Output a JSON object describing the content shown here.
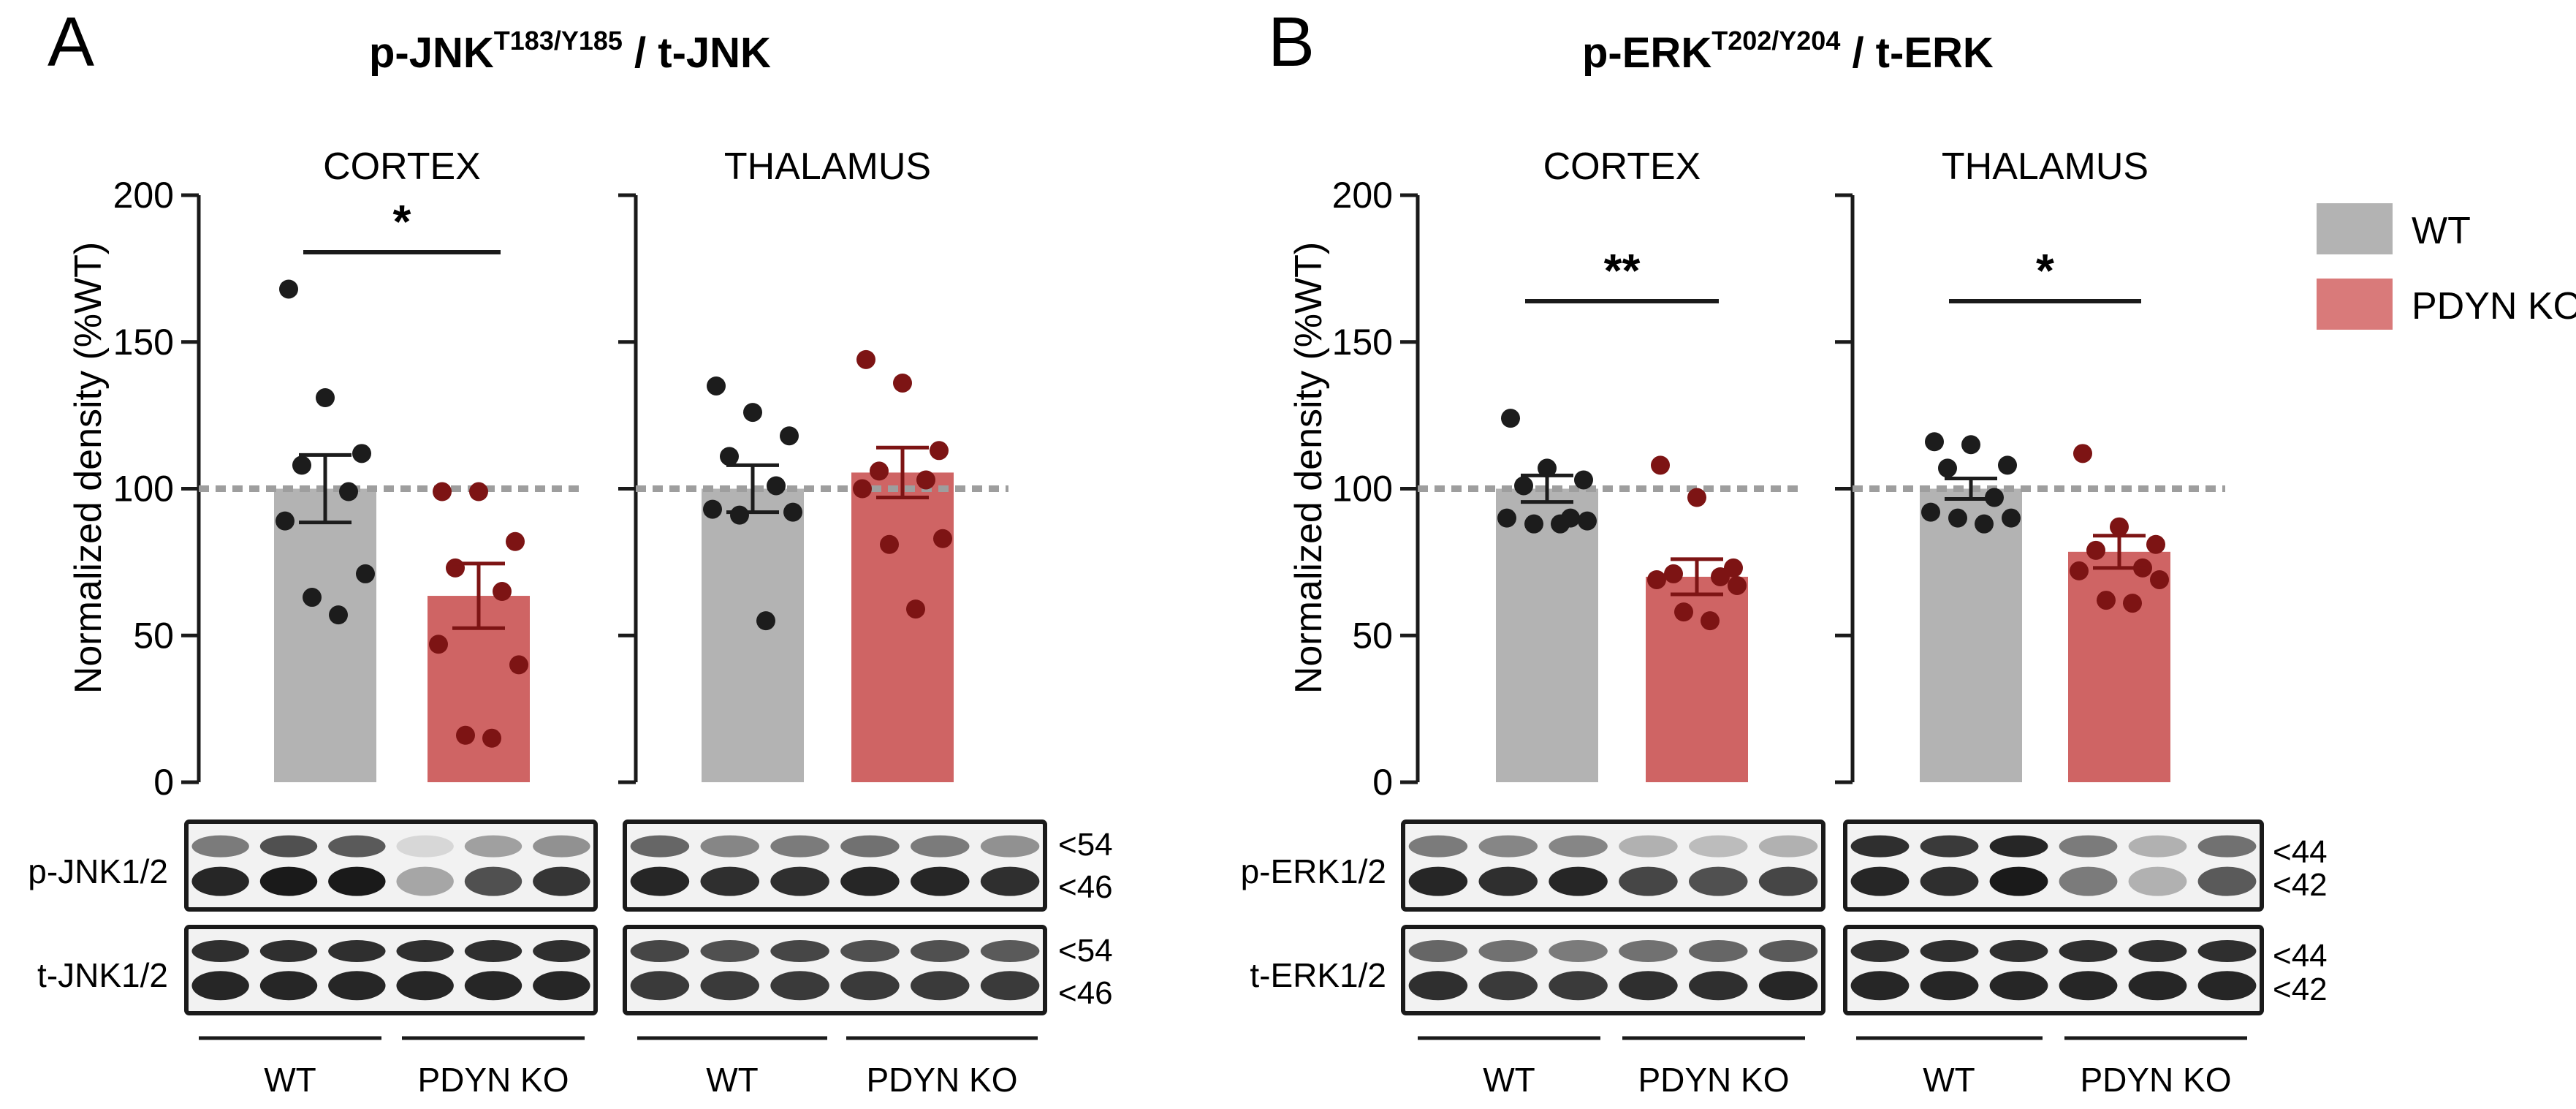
{
  "colors": {
    "wt_bar": "#b3b3b3",
    "ko_bar": "#cf6464",
    "wt_dot": "#1c1c1c",
    "ko_dot": "#7d1414",
    "axis": "#1a1a1a",
    "reference_line": "#9e9e9e",
    "blot_bg": "#f2f2f2",
    "band": "#1a1a1a"
  },
  "legend": [
    {
      "label": "WT",
      "color": "#b3b3b3"
    },
    {
      "label": "PDYN KO",
      "color": "#d97a7a"
    }
  ],
  "panels": [
    {
      "letter": "A",
      "title_main": "p-JNK",
      "title_sup": "T183/Y185",
      "title_rest": " / t-JNK",
      "ylabel": "Normalized density (%WT)",
      "blot_rows": [
        "p-JNK1/2",
        "t-JNK1/2"
      ],
      "mw_markers": [
        [
          "<54",
          "<46"
        ],
        [
          "<54",
          "<46"
        ]
      ]
    },
    {
      "letter": "B",
      "title_main": "p-ERK",
      "title_sup": "T202/Y204",
      "title_rest": " / t-ERK",
      "ylabel": "Normalized density (%WT)",
      "blot_rows": [
        "p-ERK1/2",
        "t-ERK1/2"
      ],
      "mw_markers": [
        [
          "<44",
          "<42"
        ],
        [
          "<44",
          "<42"
        ]
      ]
    }
  ],
  "group_labels": [
    "WT",
    "PDYN KO"
  ],
  "chart_data": [
    {
      "type": "bar",
      "panel": "A",
      "title": "CORTEX",
      "ylabel": "Normalized density (%WT)",
      "ylim": [
        0,
        200
      ],
      "yticks": [
        0,
        50,
        100,
        150,
        200
      ],
      "reference_line": 100,
      "categories": [
        "WT",
        "PDYN KO"
      ],
      "values": [
        100,
        63.5
      ],
      "sem": [
        11.5,
        11
      ],
      "points": [
        [
          168,
          131,
          112,
          108,
          99,
          89,
          71,
          63,
          57
        ],
        [
          99,
          99,
          82,
          73,
          65,
          47,
          40,
          16,
          15
        ]
      ],
      "significance": "*"
    },
    {
      "type": "bar",
      "panel": "A",
      "title": "THALAMUS",
      "ylabel": "",
      "ylim": [
        0,
        200
      ],
      "yticks": [
        0,
        50,
        100,
        150,
        200
      ],
      "reference_line": 100,
      "categories": [
        "WT",
        "PDYN KO"
      ],
      "values": [
        100,
        105.5
      ],
      "sem": [
        8,
        8.5
      ],
      "points": [
        [
          135,
          126,
          118,
          111,
          101,
          93,
          92,
          91,
          55
        ],
        [
          144,
          136,
          113,
          106,
          103,
          100,
          83,
          81,
          59
        ]
      ],
      "significance": ""
    },
    {
      "type": "bar",
      "panel": "B",
      "title": "CORTEX",
      "ylabel": "Normalized density (%WT)",
      "ylim": [
        0,
        200
      ],
      "yticks": [
        0,
        50,
        100,
        150,
        200
      ],
      "reference_line": 100,
      "categories": [
        "WT",
        "PDYN KO"
      ],
      "values": [
        100,
        70
      ],
      "sem": [
        4.5,
        6
      ],
      "points": [
        [
          124,
          107,
          103,
          101,
          90,
          90,
          89,
          88,
          88
        ],
        [
          108,
          97,
          73,
          71,
          70,
          69,
          67,
          58,
          55
        ]
      ],
      "significance": "**"
    },
    {
      "type": "bar",
      "panel": "B",
      "title": "THALAMUS",
      "ylabel": "",
      "ylim": [
        0,
        200
      ],
      "yticks": [
        0,
        50,
        100,
        150,
        200
      ],
      "reference_line": 100,
      "categories": [
        "WT",
        "PDYN KO"
      ],
      "values": [
        100,
        78.5
      ],
      "sem": [
        3.5,
        5.5
      ],
      "points": [
        [
          116,
          115,
          108,
          107,
          97,
          92,
          90,
          90,
          88
        ],
        [
          112,
          87,
          81,
          79,
          73,
          72,
          69,
          62,
          61
        ]
      ],
      "significance": "*"
    }
  ],
  "blots": [
    {
      "intensities": [
        [
          0.55,
          0.75,
          0.7,
          0.12,
          0.38,
          0.45
        ],
        [
          0.95,
          1.0,
          1.0,
          0.35,
          0.75,
          0.88
        ]
      ],
      "t_intensities": [
        [
          0.9,
          0.9,
          0.9,
          0.9,
          0.9,
          0.9
        ],
        [
          0.95,
          0.95,
          0.95,
          0.95,
          0.95,
          0.95
        ]
      ]
    },
    {
      "intensities": [
        [
          0.65,
          0.5,
          0.55,
          0.6,
          0.55,
          0.45
        ],
        [
          0.95,
          0.9,
          0.9,
          0.95,
          0.95,
          0.9
        ]
      ],
      "t_intensities": [
        [
          0.8,
          0.75,
          0.8,
          0.75,
          0.75,
          0.7
        ],
        [
          0.85,
          0.85,
          0.85,
          0.85,
          0.85,
          0.85
        ]
      ]
    },
    {
      "intensities": [
        [
          0.55,
          0.5,
          0.5,
          0.3,
          0.25,
          0.3
        ],
        [
          0.95,
          0.9,
          0.95,
          0.8,
          0.75,
          0.8
        ]
      ],
      "t_intensities": [
        [
          0.65,
          0.6,
          0.55,
          0.6,
          0.65,
          0.7
        ],
        [
          0.9,
          0.85,
          0.85,
          0.9,
          0.9,
          0.95
        ]
      ]
    },
    {
      "intensities": [
        [
          0.9,
          0.85,
          0.95,
          0.55,
          0.3,
          0.6
        ],
        [
          0.95,
          0.9,
          1.0,
          0.55,
          0.3,
          0.7
        ]
      ],
      "t_intensities": [
        [
          0.9,
          0.9,
          0.9,
          0.9,
          0.9,
          0.9
        ],
        [
          0.95,
          0.95,
          0.95,
          0.95,
          0.95,
          0.95
        ]
      ]
    }
  ]
}
